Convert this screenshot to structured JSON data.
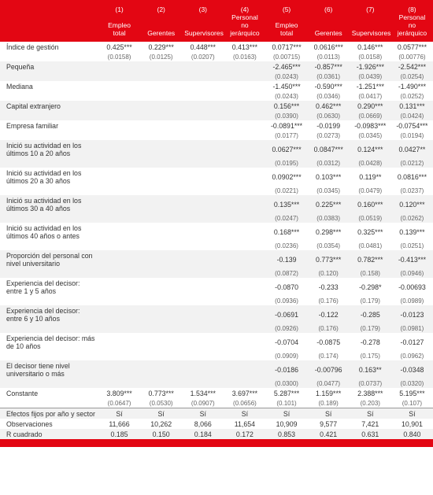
{
  "cols": {
    "n": [
      "(1)",
      "(2)",
      "(3)",
      "(4)",
      "(5)",
      "(6)",
      "(7)",
      "(8)"
    ],
    "h": [
      "Empleo total",
      "Gerentes",
      "Supervisores",
      "Personal no jerárquico",
      "Empleo total",
      "Gerentes",
      "Supervisores",
      "Personal no jerárquico"
    ]
  },
  "rows": [
    {
      "l": "Índice de gestión",
      "c": [
        "0.425***",
        "0.229***",
        "0.448***",
        "0.413***",
        "0.0717***",
        "0.0616***",
        "0.146***",
        "0.0577***"
      ],
      "s": [
        "(0.0158)",
        "(0.0125)",
        "(0.0207)",
        "(0.0163)",
        "(0.00715)",
        "(0.0113)",
        "(0.0158)",
        "(0.00776)"
      ],
      "a": 0
    },
    {
      "l": "Pequeña",
      "c": [
        "",
        "",
        "",
        "",
        "-2.465***",
        "-0.857***",
        "-1.926***",
        "-2.542***"
      ],
      "s": [
        "",
        "",
        "",
        "",
        "(0.0243)",
        "(0.0361)",
        "(0.0439)",
        "(0.0254)"
      ],
      "a": 1
    },
    {
      "l": "Mediana",
      "c": [
        "",
        "",
        "",
        "",
        "-1.450***",
        "-0.590***",
        "-1.251***",
        "-1.490***"
      ],
      "s": [
        "",
        "",
        "",
        "",
        "(0.0243)",
        "(0.0346)",
        "(0.0417)",
        "(0.0252)"
      ],
      "a": 0
    },
    {
      "l": "Capital extranjero",
      "c": [
        "",
        "",
        "",
        "",
        "0.156***",
        "0.462***",
        "0.290***",
        "0.131***"
      ],
      "s": [
        "",
        "",
        "",
        "",
        "(0.0390)",
        "(0.0630)",
        "(0.0669)",
        "(0.0424)"
      ],
      "a": 1
    },
    {
      "l": "Empresa familiar",
      "c": [
        "",
        "",
        "",
        "",
        "-0.0891***",
        "-0.0199",
        "-0.0983***",
        "-0.0754***"
      ],
      "s": [
        "",
        "",
        "",
        "",
        "(0.0177)",
        "(0.0273)",
        "(0.0345)",
        "(0.0194)"
      ],
      "a": 0
    },
    {
      "l": "Inició su actividad en los últimos 10 a 20 años",
      "c": [
        "",
        "",
        "",
        "",
        "0.0627***",
        "0.0847***",
        "0.124***",
        "0.0427**"
      ],
      "s": [
        "",
        "",
        "",
        "",
        "(0.0195)",
        "(0.0312)",
        "(0.0428)",
        "(0.0212)"
      ],
      "a": 1
    },
    {
      "l": "Inició su actividad en los últimos 20 a 30 años",
      "c": [
        "",
        "",
        "",
        "",
        "0.0902***",
        "0.103***",
        "0.119**",
        "0.0816***"
      ],
      "s": [
        "",
        "",
        "",
        "",
        "(0.0221)",
        "(0.0345)",
        "(0.0479)",
        "(0.0237)"
      ],
      "a": 0
    },
    {
      "l": "Inició su actividad en los últimos 30 a 40 años",
      "c": [
        "",
        "",
        "",
        "",
        "0.135***",
        "0.225***",
        "0.160***",
        "0.120***"
      ],
      "s": [
        "",
        "",
        "",
        "",
        "(0.0247)",
        "(0.0383)",
        "(0.0519)",
        "(0.0262)"
      ],
      "a": 1
    },
    {
      "l": "Inició su actividad en los últimos 40 años o antes",
      "c": [
        "",
        "",
        "",
        "",
        "0.168***",
        "0.298***",
        "0.325***",
        "0.139***"
      ],
      "s": [
        "",
        "",
        "",
        "",
        "(0.0236)",
        "(0.0354)",
        "(0.0481)",
        "(0.0251)"
      ],
      "a": 0
    },
    {
      "l": "Proporción del personal con nivel universitario",
      "c": [
        "",
        "",
        "",
        "",
        "-0.139",
        "0.773***",
        "0.782***",
        "-0.413***"
      ],
      "s": [
        "",
        "",
        "",
        "",
        "(0.0872)",
        "(0.120)",
        "(0.158)",
        "(0.0946)"
      ],
      "a": 1
    },
    {
      "l": "Experiencia del decisor: entre 1 y 5 años",
      "c": [
        "",
        "",
        "",
        "",
        "-0.0870",
        "-0.233",
        "-0.298*",
        "-0.00693"
      ],
      "s": [
        "",
        "",
        "",
        "",
        "(0.0936)",
        "(0.176)",
        "(0.179)",
        "(0.0989)"
      ],
      "a": 0
    },
    {
      "l": "Experiencia del decisor: entre 6 y 10 años",
      "c": [
        "",
        "",
        "",
        "",
        "-0.0691",
        "-0.122",
        "-0.285",
        "-0.0123"
      ],
      "s": [
        "",
        "",
        "",
        "",
        "(0.0926)",
        "(0.176)",
        "(0.179)",
        "(0.0981)"
      ],
      "a": 1
    },
    {
      "l": "Experiencia del decisor: más de 10 años",
      "c": [
        "",
        "",
        "",
        "",
        "-0.0704",
        "-0.0875",
        "-0.278",
        "-0.0127"
      ],
      "s": [
        "",
        "",
        "",
        "",
        "(0.0909)",
        "(0.174)",
        "(0.175)",
        "(0.0962)"
      ],
      "a": 0
    },
    {
      "l": "El decisor tiene nivel universitario o más",
      "c": [
        "",
        "",
        "",
        "",
        "-0.0186",
        "-0.00796",
        "0.163**",
        "-0.0348"
      ],
      "s": [
        "",
        "",
        "",
        "",
        "(0.0300)",
        "(0.0477)",
        "(0.0737)",
        "(0.0320)"
      ],
      "a": 1
    },
    {
      "l": "Constante",
      "c": [
        "3.809***",
        "0.773***",
        "1.534***",
        "3.697***",
        "5.287***",
        "1.159***",
        "2.388***",
        "5.195***"
      ],
      "s": [
        "(0.0647)",
        "(0.0530)",
        "(0.0907)",
        "(0.0656)",
        "(0.101)",
        "(0.189)",
        "(0.203)",
        "(0.107)"
      ],
      "a": 0
    }
  ],
  "foot": [
    {
      "l": "Efectos fijos por año y sector",
      "c": [
        "Sí",
        "Sí",
        "Sí",
        "Sí",
        "Sí",
        "Sí",
        "Sí",
        "Sí"
      ],
      "a": 1
    },
    {
      "l": "Observaciones",
      "c": [
        "11,666",
        "10,262",
        "8,066",
        "11,654",
        "10,909",
        "9,577",
        "7,421",
        "10,901"
      ],
      "a": 0
    },
    {
      "l": "R cuadrado",
      "c": [
        "0.185",
        "0.150",
        "0.184",
        "0.172",
        "0.853",
        "0.421",
        "0.631",
        "0.840"
      ],
      "a": 1
    }
  ]
}
